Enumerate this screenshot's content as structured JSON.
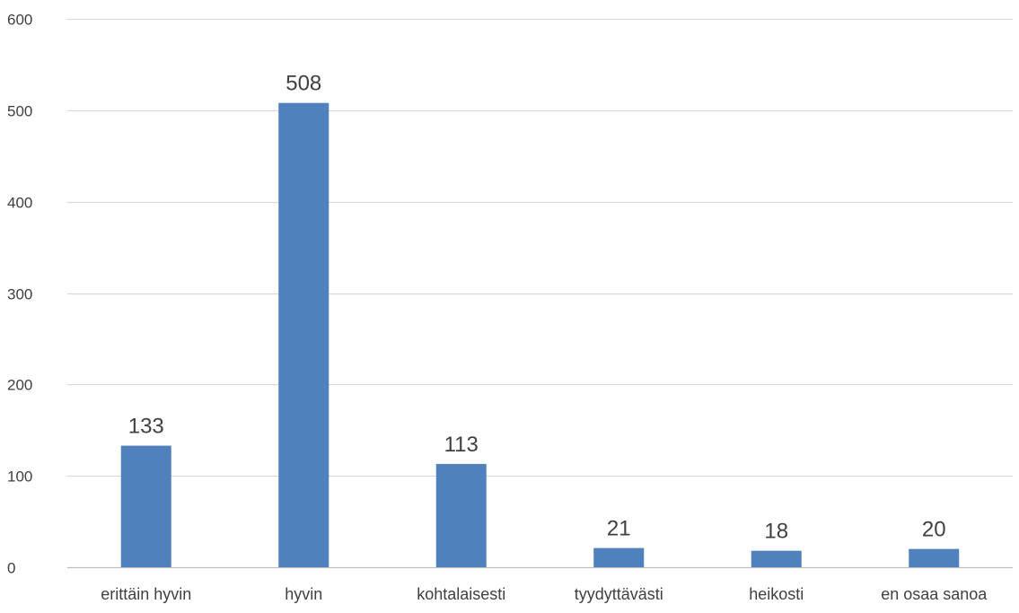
{
  "chart_data": {
    "type": "bar",
    "title": "",
    "xlabel": "",
    "ylabel": "",
    "categories": [
      "erittäin hyvin",
      "hyvin",
      "kohtalaisesti",
      "tyydyttävästi",
      "heikosti",
      "en osaa sanoa"
    ],
    "values": [
      133,
      508,
      113,
      21,
      18,
      20
    ],
    "data_labels": [
      "133",
      "508",
      "113",
      "21",
      "18",
      "20"
    ],
    "ylim": [
      0,
      600
    ],
    "yticks": [
      0,
      100,
      200,
      300,
      400,
      500,
      600
    ],
    "ytick_labels": [
      "0",
      "100",
      "200",
      "300",
      "400",
      "500",
      "600"
    ],
    "grid": true,
    "legend": "none",
    "colors": {
      "bar": "#4f81bd",
      "grid": "#d9d9d9",
      "axis": "#bfbfbf",
      "text": "#404040"
    }
  }
}
